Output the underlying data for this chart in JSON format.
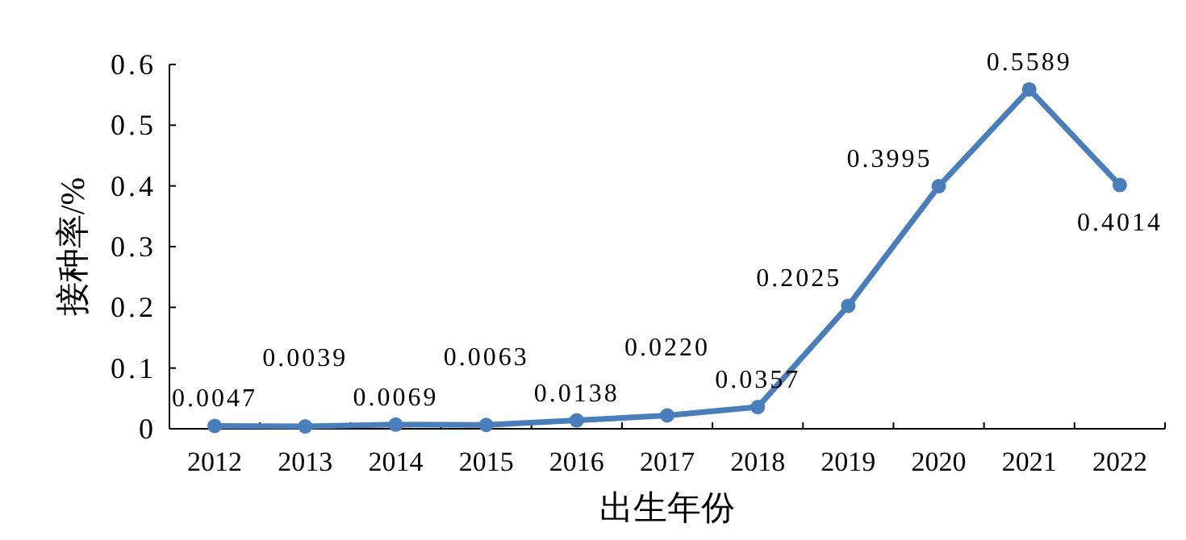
{
  "chart_data": {
    "type": "line",
    "xlabel": "出生年份",
    "ylabel": "接种率/%",
    "categories": [
      "2012",
      "2013",
      "2014",
      "2015",
      "2016",
      "2017",
      "2018",
      "2019",
      "2020",
      "2021",
      "2022"
    ],
    "values": [
      0.0047,
      0.0039,
      0.0069,
      0.0063,
      0.0138,
      0.022,
      0.0357,
      0.2025,
      0.3995,
      0.5589,
      0.4014
    ],
    "value_labels": [
      "0.0047",
      "0.0039",
      "0.0069",
      "0.0063",
      "0.0138",
      "0.0220",
      "0.0357",
      "0.2025",
      "0.3995",
      "0.5589",
      "0.4014"
    ],
    "color": "#4a7ebb",
    "marker": "circle",
    "line_style": "solid",
    "grid": false,
    "ylim": [
      0,
      0.6
    ],
    "yticks": [
      0,
      0.1,
      0.2,
      0.3,
      0.4,
      0.5,
      0.6
    ]
  }
}
